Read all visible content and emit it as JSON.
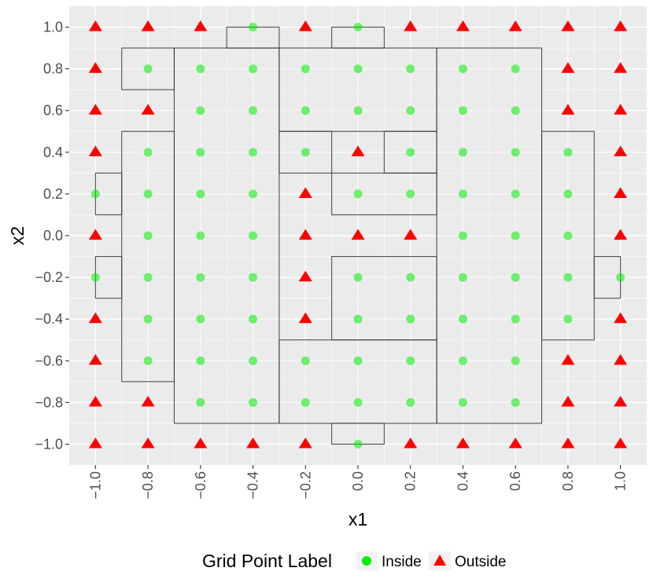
{
  "chart_data": {
    "type": "scatter",
    "xlabel": "x1",
    "ylabel": "x2",
    "xlim": [
      -1.1,
      1.1
    ],
    "ylim": [
      -1.1,
      1.1
    ],
    "x_ticks": [
      -1.0,
      -0.8,
      -0.6,
      -0.4,
      -0.2,
      0.0,
      0.2,
      0.4,
      0.6,
      0.8,
      1.0
    ],
    "y_ticks": [
      -1.0,
      -0.8,
      -0.6,
      -0.4,
      -0.2,
      0.0,
      0.2,
      0.4,
      0.6,
      0.8,
      1.0
    ],
    "x_tick_labels": [
      "−1.0",
      "−0.8",
      "−0.6",
      "−0.4",
      "−0.2",
      "0.0",
      "0.2",
      "0.4",
      "0.6",
      "0.8",
      "1.0"
    ],
    "y_tick_labels": [
      "−1.0",
      "−0.8",
      "−0.6",
      "−0.4",
      "−0.2",
      "0.0",
      "0.2",
      "0.4",
      "0.6",
      "0.8",
      "1.0"
    ],
    "grid": true,
    "background_color": "#ebebeb",
    "legend": {
      "title": "Grid Point Label",
      "placement": "bottom",
      "entries": [
        {
          "label": "Inside",
          "shape": "circle",
          "color": "#00ee00"
        },
        {
          "label": "Outside",
          "shape": "triangle",
          "color": "#ff0000"
        }
      ]
    },
    "rectangles": [
      {
        "x": [
          -0.9,
          -0.7
        ],
        "y": [
          0.7,
          0.9
        ]
      },
      {
        "x": [
          -0.7,
          -0.3
        ],
        "y": [
          -0.9,
          0.9
        ]
      },
      {
        "x": [
          -0.5,
          -0.3
        ],
        "y": [
          0.9,
          1.0
        ]
      },
      {
        "x": [
          -0.3,
          0.3
        ],
        "y": [
          0.5,
          0.9
        ]
      },
      {
        "x": [
          -0.1,
          0.1
        ],
        "y": [
          0.9,
          1.0
        ]
      },
      {
        "x": [
          0.3,
          0.7
        ],
        "y": [
          -0.9,
          0.9
        ]
      },
      {
        "x": [
          -0.9,
          -0.7
        ],
        "y": [
          -0.7,
          0.5
        ]
      },
      {
        "x": [
          -1.0,
          -0.9
        ],
        "y": [
          0.1,
          0.3
        ]
      },
      {
        "x": [
          -1.0,
          -0.9
        ],
        "y": [
          -0.3,
          -0.1
        ]
      },
      {
        "x": [
          -0.3,
          -0.1
        ],
        "y": [
          0.3,
          0.5
        ]
      },
      {
        "x": [
          0.1,
          0.3
        ],
        "y": [
          0.3,
          0.5
        ]
      },
      {
        "x": [
          -0.1,
          0.3
        ],
        "y": [
          0.1,
          0.3
        ]
      },
      {
        "x": [
          -0.1,
          0.3
        ],
        "y": [
          -0.5,
          -0.1
        ]
      },
      {
        "x": [
          -0.3,
          0.3
        ],
        "y": [
          -0.9,
          -0.5
        ]
      },
      {
        "x": [
          -0.1,
          0.1
        ],
        "y": [
          -1.0,
          -0.9
        ]
      },
      {
        "x": [
          0.7,
          0.9
        ],
        "y": [
          -0.5,
          0.5
        ]
      },
      {
        "x": [
          0.9,
          1.0
        ],
        "y": [
          -0.3,
          -0.1
        ]
      }
    ],
    "grid_points": {
      "x": [
        -1.0,
        -0.8,
        -0.6,
        -0.4,
        -0.2,
        0.0,
        0.2,
        0.4,
        0.6,
        0.8,
        1.0
      ],
      "y_rows_top_to_bottom": [
        1.0,
        0.8,
        0.6,
        0.4,
        0.2,
        0.0,
        -0.2,
        -0.4,
        -0.6,
        -0.8,
        -1.0
      ],
      "labels": [
        "OOOIOIOOOOO",
        "OIIIIIIIIOO",
        "OOIIIIIIIOO",
        "OIIIIOIIIIO",
        "IIIIOIIIIIO",
        "OIIIOOOIIIO",
        "IIIIOIIIIII",
        "OIIIOIIIIIO",
        "OIIIIIIIIOO",
        "OOIIIIIIIOO",
        "OOOOOIOOOOO"
      ],
      "legend_key": {
        "I": "Inside",
        "O": "Outside"
      }
    }
  }
}
